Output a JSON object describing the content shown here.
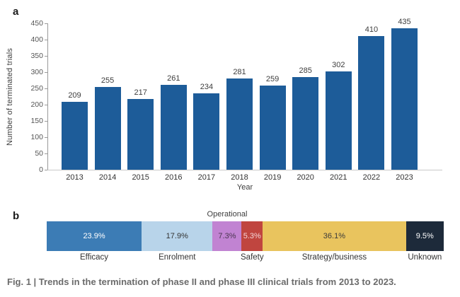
{
  "panel_a": {
    "label": "a"
  },
  "panel_b": {
    "label": "b"
  },
  "caption": "Fig. 1 | Trends in the termination of phase II and phase III clinical trials from 2013 to 2023.",
  "colors": {
    "bar_blue": "#1d5c99",
    "axis_gray": "#9a9a9a",
    "baseline_gray": "#c9c9c9"
  },
  "chart_data": [
    {
      "type": "bar",
      "categories": [
        "2013",
        "2014",
        "2015",
        "2016",
        "2017",
        "2018",
        "2019",
        "2020",
        "2021",
        "2022",
        "2023"
      ],
      "values": [
        209,
        255,
        217,
        261,
        234,
        281,
        259,
        285,
        302,
        410,
        435
      ],
      "title": "",
      "xlabel": "Year",
      "ylabel": "Number of terminated trials",
      "ylim": [
        0,
        450
      ],
      "ytick_step": 50,
      "grid": false,
      "legend": "none",
      "bar_color": "#1d5c99"
    },
    {
      "type": "bar",
      "subtype": "horizontal-stacked-percentage",
      "title": "",
      "segments": [
        {
          "label": "Efficacy",
          "value": 23.9,
          "display": "23.9%",
          "color": "#3c7cb5",
          "text_color": "#ffffff",
          "label_position": "below"
        },
        {
          "label": "Enrolment",
          "value": 17.9,
          "display": "17.9%",
          "color": "#b8d4ea",
          "text_color": "#333333",
          "label_position": "below"
        },
        {
          "label": "Operational",
          "value": 7.3,
          "display": "7.3%",
          "color": "#c183d2",
          "text_color": "#4a3550",
          "label_position": "above"
        },
        {
          "label": "Safety",
          "value": 5.3,
          "display": "5.3%",
          "color": "#c0453f",
          "text_color": "#f3d4d6",
          "label_position": "below"
        },
        {
          "label": "Strategy/business",
          "value": 36.1,
          "display": "36.1%",
          "color": "#e9c45e",
          "text_color": "#3a3a3a",
          "label_position": "below"
        },
        {
          "label": "Unknown",
          "value": 9.5,
          "display": "9.5%",
          "color": "#1d2a3a",
          "text_color": "#ffffff",
          "label_position": "below"
        }
      ]
    }
  ]
}
